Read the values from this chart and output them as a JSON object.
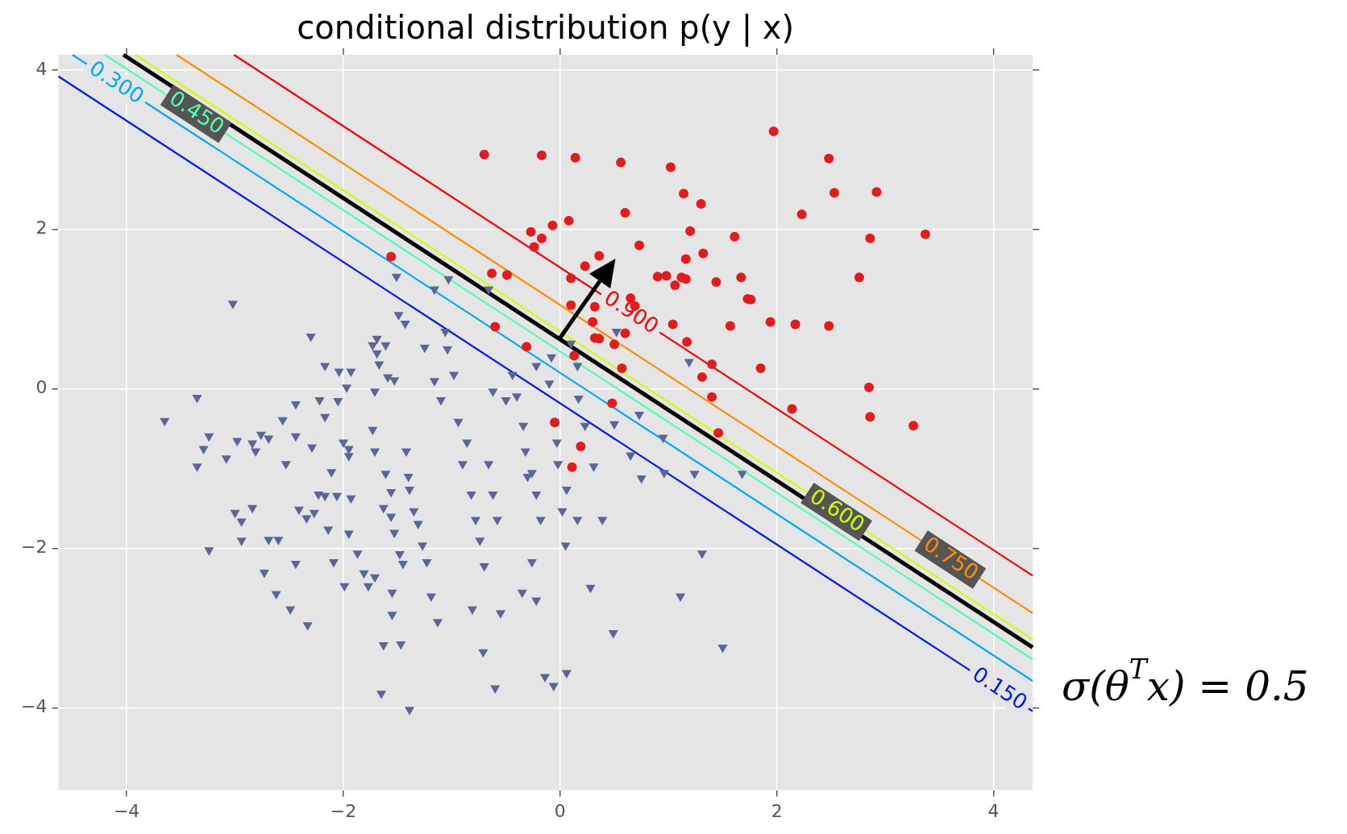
{
  "chart_data": {
    "type": "scatter",
    "title": "conditional distribution p(y | x)",
    "xlim": [
      -4.63,
      4.36
    ],
    "ylim": [
      -5.03,
      4.19
    ],
    "xticks": [
      {
        "value": -4,
        "label": "−4"
      },
      {
        "value": -2,
        "label": "−2"
      },
      0,
      2,
      4
    ],
    "yticks": [
      {
        "value": -4,
        "label": "−4"
      },
      {
        "value": -2,
        "label": "−2"
      },
      0,
      2,
      4
    ],
    "grid": true,
    "annotations": [
      {
        "text": "0.150",
        "x": 4.05,
        "y": -3.77
      },
      {
        "text": "0.300",
        "x": -4.1,
        "y": 3.83
      },
      {
        "text": "0.450",
        "x": -3.36,
        "y": 3.45
      },
      {
        "text": "0.600",
        "x": 2.55,
        "y": -1.54
      },
      {
        "text": "0.750",
        "x": 3.6,
        "y": -2.14
      },
      {
        "text": "0.900",
        "x": 0.65,
        "y": 0.95
      },
      "σ(θ$^{T}$x) = 0.5"
    ],
    "series": [
      {
        "type": "line",
        "marker": "none",
        "color": "#0018ff",
        "x": [
          -4.63,
          4.36
        ],
        "values": [
          3.92,
          -4.04
        ]
      },
      {
        "type": "line",
        "marker": "none",
        "color": "#00a8ff",
        "x": [
          -4.5,
          4.36
        ],
        "values": [
          4.19,
          -3.66
        ]
      },
      {
        "type": "line",
        "marker": "none",
        "color": "#4dffb0",
        "x": [
          -4.2,
          4.36
        ],
        "values": [
          4.19,
          -3.39
        ]
      },
      {
        "type": "line",
        "marker": "none",
        "color": "#000000",
        "x": [
          -4.03,
          4.36
        ],
        "values": [
          4.19,
          -3.24
        ]
      },
      {
        "type": "line",
        "marker": "none",
        "color": "#ccff00",
        "x": [
          -3.92,
          4.36
        ],
        "values": [
          4.19,
          -3.14
        ]
      },
      {
        "type": "line",
        "marker": "none",
        "color": "#ff8c00",
        "x": [
          -3.54,
          4.36
        ],
        "values": [
          4.19,
          -2.81
        ]
      },
      {
        "type": "line",
        "marker": "none",
        "color": "#ff0000",
        "x": [
          -3.01,
          4.36
        ],
        "values": [
          4.19,
          -2.34
        ]
      },
      {
        "type": "scatter",
        "marker": "circle",
        "color": "#e41a1c",
        "x": [
          -0.7,
          -0.17,
          0.14,
          0.56,
          1.02,
          1.97,
          2.48,
          2.53,
          2.92,
          1.14,
          1.3,
          0.6,
          2.23,
          -0.07,
          0.08,
          -0.27,
          -0.17,
          -0.24,
          1.2,
          1.61,
          2.86,
          3.37,
          0.73,
          1.32,
          1.16,
          0.36,
          0.23,
          0.1,
          -1.56,
          -0.63,
          -0.49,
          0.9,
          0.98,
          1.12,
          1.16,
          1.06,
          1.44,
          1.67,
          1.73,
          1.76,
          2.76,
          0.1,
          0.65,
          0.69,
          0.32,
          0.3,
          1.04,
          1.94,
          2.17,
          2.48,
          1.57,
          0.6,
          0.32,
          0.36,
          0.5,
          1.17,
          -0.31,
          0.13,
          1.4,
          0.57,
          1.85,
          1.31,
          2.85,
          1.4,
          0.48,
          2.14,
          2.86,
          3.26,
          1.46,
          -0.05,
          0.19,
          0.11,
          -0.6
        ],
        "values": [
          2.94,
          2.93,
          2.9,
          2.84,
          2.78,
          3.23,
          2.89,
          2.46,
          2.47,
          2.45,
          2.32,
          2.21,
          2.19,
          2.05,
          2.11,
          1.97,
          1.89,
          1.78,
          1.98,
          1.91,
          1.89,
          1.94,
          1.8,
          1.7,
          1.63,
          1.67,
          1.54,
          1.39,
          1.66,
          1.45,
          1.43,
          1.41,
          1.42,
          1.4,
          1.38,
          1.3,
          1.34,
          1.4,
          1.13,
          1.12,
          1.4,
          1.05,
          1.14,
          1.04,
          1.03,
          0.84,
          0.81,
          0.84,
          0.81,
          0.79,
          0.79,
          0.7,
          0.64,
          0.63,
          0.56,
          0.59,
          0.53,
          0.42,
          0.31,
          0.26,
          0.26,
          0.15,
          0.02,
          -0.1,
          -0.18,
          -0.25,
          -0.35,
          -0.46,
          -0.55,
          -0.42,
          -0.72,
          -0.98,
          0.78
        ]
      },
      {
        "type": "scatter",
        "marker": "triangle",
        "color": "#5a6794",
        "x": [
          -3.02,
          -3.65,
          -3.35,
          -3.29,
          -3.35,
          -3.24,
          -3.08,
          -3.0,
          -2.94,
          -2.94,
          -2.84,
          -2.98,
          -2.84,
          -2.76,
          -2.69,
          -2.81,
          -2.56,
          -2.53,
          -2.44,
          -2.44,
          -2.3,
          -2.29,
          -2.22,
          -2.17,
          -2.17,
          -3.24,
          -2.69,
          -2.6,
          -2.73,
          -2.62,
          -2.49,
          -2.33,
          -2.44,
          -2.41,
          -2.34,
          -2.27,
          -2.23,
          -2.17,
          -2.14,
          -2.09,
          -1.99,
          -2.04,
          -1.93,
          -1.97,
          -2.05,
          -2.11,
          -2.06,
          -2.0,
          -1.95,
          -1.95,
          -1.93,
          -1.95,
          -1.87,
          -1.81,
          -1.77,
          -1.71,
          -1.73,
          -1.71,
          -1.71,
          -1.69,
          -1.73,
          -1.61,
          -1.69,
          -1.67,
          -1.59,
          -1.53,
          -1.61,
          -1.56,
          -1.63,
          -1.56,
          -1.53,
          -1.48,
          -1.45,
          -1.55,
          -1.55,
          -1.63,
          -1.47,
          -1.65,
          -1.39,
          -1.51,
          -1.49,
          -1.43,
          -1.42,
          -1.4,
          -1.39,
          -1.35,
          -1.31,
          -1.27,
          -1.23,
          -1.19,
          -1.13,
          -1.25,
          -1.16,
          -1.1,
          -1.16,
          -1.06,
          -1.03,
          -1.04,
          -0.98,
          -0.94,
          -0.9,
          -0.86,
          -0.82,
          -0.78,
          -0.74,
          -0.7,
          -0.81,
          -0.71,
          -0.6,
          -0.55,
          -0.58,
          -0.62,
          -0.66,
          -0.62,
          -0.66,
          -0.5,
          -0.44,
          -0.4,
          -0.34,
          -0.32,
          -0.26,
          -0.3,
          -0.22,
          -0.18,
          -0.26,
          -0.22,
          -0.35,
          -0.14,
          -0.06,
          0.06,
          -0.1,
          -0.08,
          -0.22,
          -0.03,
          -0.02,
          0.02,
          0.06,
          0.16,
          0.05,
          0.28,
          0.49,
          0.17,
          0.23,
          0.31,
          0.16,
          0.1,
          0.39,
          0.52,
          0.65,
          0.75,
          0.5,
          0.73,
          0.95,
          1.11,
          1.31,
          1.5,
          1.24,
          1.68,
          0.96,
          1.19
        ],
        "values": [
          1.07,
          -0.4,
          -0.11,
          -0.75,
          -0.97,
          -0.59,
          -0.87,
          -1.55,
          -1.66,
          -1.9,
          -1.49,
          -0.65,
          -0.68,
          -0.57,
          -0.62,
          -0.78,
          -0.39,
          -0.94,
          -0.19,
          -0.59,
          0.66,
          -0.73,
          -0.14,
          0.29,
          -0.35,
          -2.02,
          -1.89,
          -1.89,
          -2.3,
          -2.57,
          -2.76,
          -2.96,
          -2.19,
          -1.51,
          -1.62,
          -1.55,
          -1.32,
          -1.34,
          -1.76,
          -2.17,
          -2.47,
          0.22,
          0.22,
          0.02,
          -0.15,
          -1.04,
          -1.34,
          -0.67,
          -0.75,
          -0.84,
          -1.37,
          -1.81,
          -2.06,
          -2.31,
          -2.47,
          -2.36,
          -0.51,
          -0.78,
          -0.03,
          0.63,
          0.55,
          0.55,
          0.45,
          0.31,
          0.15,
          0.11,
          -1.06,
          -1.29,
          -1.49,
          -1.6,
          -1.8,
          -2.07,
          -2.19,
          -2.55,
          -2.83,
          -3.21,
          -3.2,
          -3.82,
          -4.02,
          1.41,
          0.93,
          0.82,
          -0.78,
          -1.1,
          -1.26,
          -1.53,
          -1.69,
          -1.96,
          -2.17,
          -2.6,
          -2.92,
          0.52,
          0.1,
          -0.14,
          1.25,
          0.72,
          1.38,
          0.5,
          0.18,
          -0.41,
          -0.94,
          -0.67,
          -1.32,
          -1.64,
          -1.9,
          -2.22,
          -2.76,
          -3.3,
          -3.75,
          -2.81,
          -1.64,
          -1.32,
          -0.94,
          -0.03,
          1.25,
          -0.14,
          0.18,
          -0.09,
          -0.46,
          -0.78,
          -1.05,
          -1.1,
          -1.32,
          -1.64,
          -2.17,
          -2.65,
          -2.55,
          -3.61,
          -3.72,
          -3.56,
          0.07,
          0.4,
          0.29,
          -0.67,
          -0.94,
          -1.53,
          -1.26,
          -1.64,
          -1.96,
          -2.49,
          -3.06,
          -0.12,
          -0.46,
          -0.97,
          0.29,
          0.57,
          -1.64,
          0.72,
          -0.83,
          -1.12,
          -0.44,
          -0.32,
          -0.61,
          -2.6,
          -2.06,
          -3.24,
          -1.06,
          -1.06,
          -1.05,
          0.34
        ]
      }
    ]
  }
}
